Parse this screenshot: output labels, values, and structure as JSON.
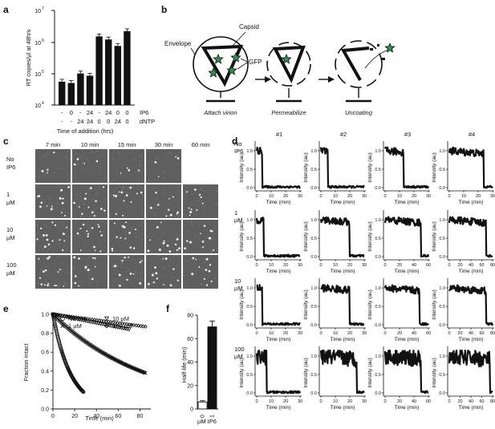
{
  "panel_labels": {
    "a": "a",
    "b": "b",
    "c": "c",
    "d": "d",
    "e": "e",
    "f": "f"
  },
  "panel_a": {
    "chart_data": {
      "type": "bar",
      "ylabel": "RT copies/µl at 48hrs",
      "y_scale": "log",
      "ylim": [
        10000,
        10000000
      ],
      "y_tick_labels": [
        "10^4",
        "10^5",
        "10^6",
        "10^7"
      ],
      "row_labels": [
        "IP6",
        "dNTP"
      ],
      "xlabel": "Time of addition (hrs)",
      "categories": [
        {
          "ip6": "-",
          "dntp": "-"
        },
        {
          "ip6": "0",
          "dntp": "-"
        },
        {
          "ip6": "-",
          "dntp": "24"
        },
        {
          "ip6": "24",
          "dntp": "24"
        },
        {
          "ip6": "-",
          "dntp": "0"
        },
        {
          "ip6": "24",
          "dntp": "0"
        },
        {
          "ip6": "0",
          "dntp": "24"
        },
        {
          "ip6": "0",
          "dntp": "0"
        }
      ],
      "values": [
        55000,
        50000,
        100000,
        85000,
        1500000,
        1200000,
        750000,
        2200000
      ]
    }
  },
  "panel_b": {
    "labels": {
      "envelope": "Envelope",
      "capsid": "Capsid",
      "gfp": "GFP",
      "attach": "Attach virion",
      "permeabilize": "Permeabilize",
      "uncoating": "Uncoating"
    }
  },
  "panel_c": {
    "column_labels": [
      "7 min",
      "10 min",
      "15 min",
      "30 min",
      "60 min"
    ],
    "row_labels": [
      [
        "No",
        "IP6"
      ],
      [
        "1",
        "µM"
      ],
      [
        "10",
        "µM"
      ],
      [
        "100",
        "µM"
      ]
    ],
    "tiles_per_row": [
      4,
      5,
      5,
      5
    ],
    "spot_density": [
      4,
      14,
      16,
      15
    ]
  },
  "panel_d": {
    "column_labels": [
      "#1",
      "#2",
      "#3",
      "#4"
    ],
    "row_labels": [
      [
        "No",
        "IP6"
      ],
      [
        "1",
        "µM"
      ],
      [
        "10",
        "µM"
      ],
      [
        "100",
        "µM"
      ]
    ],
    "ylabel": "Intensity (au)",
    "xlabel": "Time (min)",
    "y_ticks": [
      "0.0",
      "0.5",
      "1.0"
    ],
    "chart_data": {
      "type": "scatter",
      "traces": [
        {
          "xmax": 30,
          "ticks": [
            "0",
            "10",
            "20",
            "30"
          ],
          "drop_time": 4
        },
        {
          "xmax": 30,
          "ticks": [
            "0",
            "10",
            "20",
            "30"
          ],
          "drop_time": 5
        },
        {
          "xmax": 30,
          "ticks": [
            "0",
            "10",
            "20",
            "30"
          ],
          "drop_time": 13
        },
        {
          "xmax": 30,
          "ticks": [
            "0",
            "10",
            "20",
            "30"
          ],
          "drop_time": 24
        },
        {
          "xmax": 30,
          "ticks": [
            "0",
            "10",
            "20",
            "30"
          ],
          "drop_time": 5
        },
        {
          "xmax": 30,
          "ticks": [
            "0",
            "10",
            "20",
            "30"
          ],
          "drop_time": 20
        },
        {
          "xmax": 60,
          "ticks": [
            "0",
            "20",
            "40",
            "60"
          ],
          "drop_time": 50
        },
        {
          "xmax": 80,
          "ticks": [
            "0",
            "20",
            "40",
            "60",
            "80"
          ],
          "drop_time": 68
        },
        {
          "xmax": 30,
          "ticks": [
            "0",
            "10",
            "20",
            "30"
          ],
          "drop_time": 4
        },
        {
          "xmax": 30,
          "ticks": [
            "0",
            "10",
            "20",
            "30"
          ],
          "drop_time": 20
        },
        {
          "xmax": 60,
          "ticks": [
            "0",
            "20",
            "40",
            "60"
          ],
          "drop_time": 48
        },
        {
          "xmax": 80,
          "ticks": [
            "0",
            "20",
            "40",
            "60",
            "80"
          ],
          "drop_time": 68
        },
        {
          "xmax": 30,
          "ticks": [
            "0",
            "10",
            "20",
            "30"
          ],
          "drop_time": 7
        },
        {
          "xmax": 30,
          "ticks": [
            "0",
            "10",
            "20",
            "30"
          ],
          "drop_time": 25
        },
        {
          "xmax": 60,
          "ticks": [
            "0",
            "20",
            "40",
            "60"
          ],
          "drop_time": 50
        },
        {
          "xmax": 80,
          "ticks": [
            "0",
            "20",
            "40",
            "60",
            "80"
          ],
          "drop_time": 75
        }
      ]
    }
  },
  "panel_e": {
    "chart_data": {
      "type": "scatter",
      "xlabel": "Time (min)",
      "ylabel": "Fraction intact",
      "xlim": [
        0,
        90
      ],
      "ylim": [
        0,
        1.0
      ],
      "x_ticks": [
        "0",
        "20",
        "40",
        "60",
        "80"
      ],
      "y_ticks": [
        "0.0",
        "0.2",
        "0.4",
        "0.6",
        "0.8",
        "1.0"
      ],
      "series": [
        {
          "name": "No IP6",
          "marker": "circle",
          "x_end": 28,
          "y_start": 1.0,
          "y_end": 0.18,
          "curve": "exp"
        },
        {
          "name": "1 µM",
          "marker": "x",
          "x_end": 85,
          "y_start": 1.0,
          "y_end": 0.38,
          "curve": "exp"
        },
        {
          "name": "10 µM",
          "marker": "triangle-down",
          "x_end": 70,
          "y_start": 1.0,
          "y_end": 0.84,
          "curve": "linear"
        },
        {
          "name": "100 µM",
          "marker": "diamond",
          "x_end": 85,
          "y_start": 1.0,
          "y_end": 0.87,
          "curve": "linear"
        }
      ]
    }
  },
  "panel_f": {
    "chart_data": {
      "type": "bar",
      "ylabel": "Half-life (min)",
      "xlabel": "µM IP6",
      "categories": [
        "0",
        "1"
      ],
      "values": [
        6,
        70
      ],
      "errors": [
        1,
        5
      ],
      "ylim": [
        0,
        80
      ],
      "y_ticks": [
        "0",
        "20",
        "40",
        "60",
        "80"
      ],
      "colors": [
        "#ffffff",
        "#111111"
      ]
    }
  }
}
